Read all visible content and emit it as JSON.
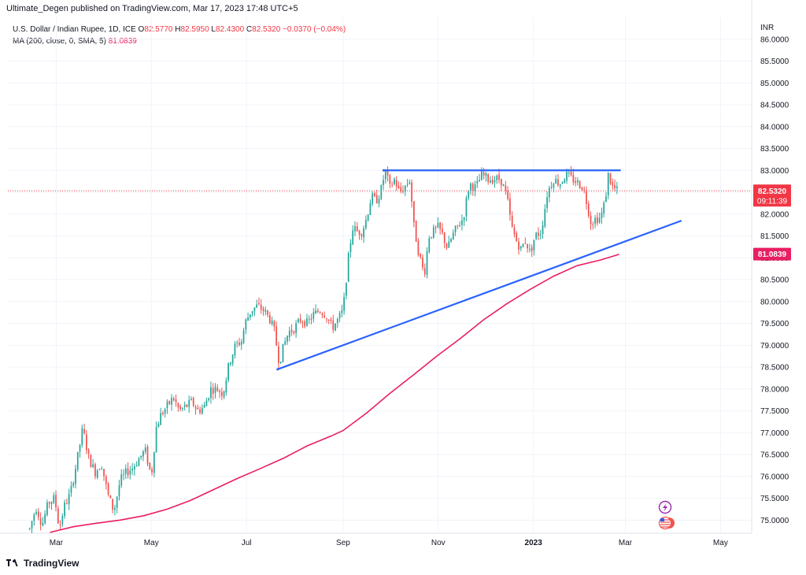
{
  "header": {
    "publish_line": "Ultimate_Degen published on TradingView.com, Mar 17, 2023 17:48 UTC+5"
  },
  "legend": {
    "symbol": "U.S. Dollar / Indian Rupee, 1D, ICE",
    "o_label": "O",
    "o_value": "82.5770",
    "h_label": "H",
    "h_value": "82.5950",
    "l_label": "L",
    "l_value": "82.4300",
    "c_label": "C",
    "c_value": "82.5320",
    "change": "−0.0370 (−0.04%)",
    "ma_label": "MA (200, close, 0, SMA, 5)",
    "ma_value": "81.0839"
  },
  "footer": {
    "brand": "TradingView"
  },
  "colors": {
    "up": "#26a69a",
    "down": "#ef5350",
    "ma": "#e91e63",
    "trendline": "#2962ff",
    "price_badge": "#f23645",
    "ma_badge": "#e91e63",
    "grid": "#f0f3fa"
  },
  "icons": [
    "lightning-icon",
    "us-flag-icon"
  ],
  "chart_data": {
    "type": "candlestick",
    "currency": "INR",
    "y_ticks": [
      "75.0000",
      "75.5000",
      "76.0000",
      "76.5000",
      "77.0000",
      "77.5000",
      "78.0000",
      "78.5000",
      "79.0000",
      "79.5000",
      "80.0000",
      "80.5000",
      "81.0000",
      "81.5000",
      "82.0000",
      "82.5000",
      "83.0000",
      "83.5000",
      "84.0000",
      "84.5000",
      "85.0000",
      "85.5000",
      "86.0000"
    ],
    "ylim": [
      74.7,
      86.5
    ],
    "x_ticks": [
      {
        "label": "Mar",
        "day": 29
      },
      {
        "label": "May",
        "day": 90
      },
      {
        "label": "Jul",
        "day": 151
      },
      {
        "label": "Sep",
        "day": 213
      },
      {
        "label": "Nov",
        "day": 274
      },
      {
        "label": "2023",
        "day": 335
      },
      {
        "label": "Mar",
        "day": 394
      },
      {
        "label": "May",
        "day": 455
      }
    ],
    "xlim_days": [
      -2,
      475
    ],
    "last_price": {
      "value": 82.532,
      "label": "82.5320",
      "countdown": "09:11:39"
    },
    "ma_last": {
      "value": 81.0839,
      "label": "81.0839"
    },
    "price_path": [
      [
        12,
        74.8
      ],
      [
        16,
        75.3
      ],
      [
        20,
        74.9
      ],
      [
        24,
        75.4
      ],
      [
        28,
        75.5
      ],
      [
        31,
        74.8
      ],
      [
        34,
        75.3
      ],
      [
        38,
        75.6
      ],
      [
        42,
        76.3
      ],
      [
        46,
        77.1
      ],
      [
        50,
        76.4
      ],
      [
        54,
        76.1
      ],
      [
        58,
        76.3
      ],
      [
        62,
        75.6
      ],
      [
        66,
        75.2
      ],
      [
        70,
        75.9
      ],
      [
        74,
        76.1
      ],
      [
        78,
        76.2
      ],
      [
        82,
        76.4
      ],
      [
        86,
        76.6
      ],
      [
        90,
        76.0
      ],
      [
        93,
        77.1
      ],
      [
        96,
        77.4
      ],
      [
        100,
        77.6
      ],
      [
        104,
        77.8
      ],
      [
        108,
        77.5
      ],
      [
        112,
        77.6
      ],
      [
        116,
        77.7
      ],
      [
        120,
        77.5
      ],
      [
        124,
        77.6
      ],
      [
        128,
        78.0
      ],
      [
        132,
        78.0
      ],
      [
        136,
        77.9
      ],
      [
        140,
        78.6
      ],
      [
        144,
        79.0
      ],
      [
        148,
        79.1
      ],
      [
        150,
        79.5
      ],
      [
        154,
        79.8
      ],
      [
        158,
        79.9
      ],
      [
        162,
        79.8
      ],
      [
        166,
        79.6
      ],
      [
        169,
        79.3
      ],
      [
        172,
        78.6
      ],
      [
        175,
        79.0
      ],
      [
        178,
        79.3
      ],
      [
        182,
        79.4
      ],
      [
        186,
        79.6
      ],
      [
        190,
        79.5
      ],
      [
        194,
        79.7
      ],
      [
        198,
        79.8
      ],
      [
        202,
        79.7
      ],
      [
        206,
        79.4
      ],
      [
        210,
        79.6
      ],
      [
        213,
        79.8
      ],
      [
        216,
        80.9
      ],
      [
        219,
        81.7
      ],
      [
        222,
        81.6
      ],
      [
        225,
        81.6
      ],
      [
        228,
        81.9
      ],
      [
        231,
        82.4
      ],
      [
        234,
        82.3
      ],
      [
        237,
        82.5
      ],
      [
        240,
        83.0
      ],
      [
        243,
        82.6
      ],
      [
        246,
        82.8
      ],
      [
        249,
        82.5
      ],
      [
        252,
        82.6
      ],
      [
        256,
        82.8
      ],
      [
        258,
        81.8
      ],
      [
        261,
        81.2
      ],
      [
        265,
        80.6
      ],
      [
        268,
        81.5
      ],
      [
        271,
        81.6
      ],
      [
        274,
        81.7
      ],
      [
        277,
        81.5
      ],
      [
        280,
        81.2
      ],
      [
        283,
        81.5
      ],
      [
        286,
        81.7
      ],
      [
        290,
        81.9
      ],
      [
        294,
        82.7
      ],
      [
        298,
        82.6
      ],
      [
        302,
        82.9
      ],
      [
        306,
        82.8
      ],
      [
        310,
        82.8
      ],
      [
        314,
        82.8
      ],
      [
        318,
        82.4
      ],
      [
        321,
        81.7
      ],
      [
        324,
        81.4
      ],
      [
        327,
        81.2
      ],
      [
        330,
        81.4
      ],
      [
        333,
        81.1
      ],
      [
        336,
        81.5
      ],
      [
        340,
        81.6
      ],
      [
        344,
        82.5
      ],
      [
        348,
        82.8
      ],
      [
        352,
        82.7
      ],
      [
        356,
        82.9
      ],
      [
        360,
        82.8
      ],
      [
        364,
        82.7
      ],
      [
        367,
        82.6
      ],
      [
        369,
        82.3
      ],
      [
        372,
        81.8
      ],
      [
        375,
        81.9
      ],
      [
        378,
        81.9
      ],
      [
        381,
        82.3
      ],
      [
        383,
        82.9
      ],
      [
        386,
        82.6
      ],
      [
        389,
        82.53
      ]
    ],
    "ma_path": [
      [
        25,
        74.72
      ],
      [
        40,
        74.85
      ],
      [
        55,
        74.93
      ],
      [
        70,
        75.0
      ],
      [
        85,
        75.1
      ],
      [
        100,
        75.25
      ],
      [
        115,
        75.45
      ],
      [
        130,
        75.7
      ],
      [
        145,
        75.95
      ],
      [
        160,
        76.18
      ],
      [
        175,
        76.42
      ],
      [
        190,
        76.7
      ],
      [
        205,
        76.92
      ],
      [
        213,
        77.05
      ],
      [
        228,
        77.45
      ],
      [
        243,
        77.9
      ],
      [
        258,
        78.32
      ],
      [
        273,
        78.75
      ],
      [
        288,
        79.15
      ],
      [
        303,
        79.58
      ],
      [
        318,
        79.95
      ],
      [
        333,
        80.28
      ],
      [
        348,
        80.58
      ],
      [
        363,
        80.82
      ],
      [
        378,
        80.95
      ],
      [
        390,
        81.08
      ]
    ],
    "trendlines": [
      {
        "name": "resistance",
        "points": [
          [
            239,
            83.0
          ],
          [
            391,
            83.0
          ]
        ]
      },
      {
        "name": "ascending-support",
        "points": [
          [
            171,
            78.45
          ],
          [
            430,
            81.85
          ]
        ]
      }
    ]
  }
}
